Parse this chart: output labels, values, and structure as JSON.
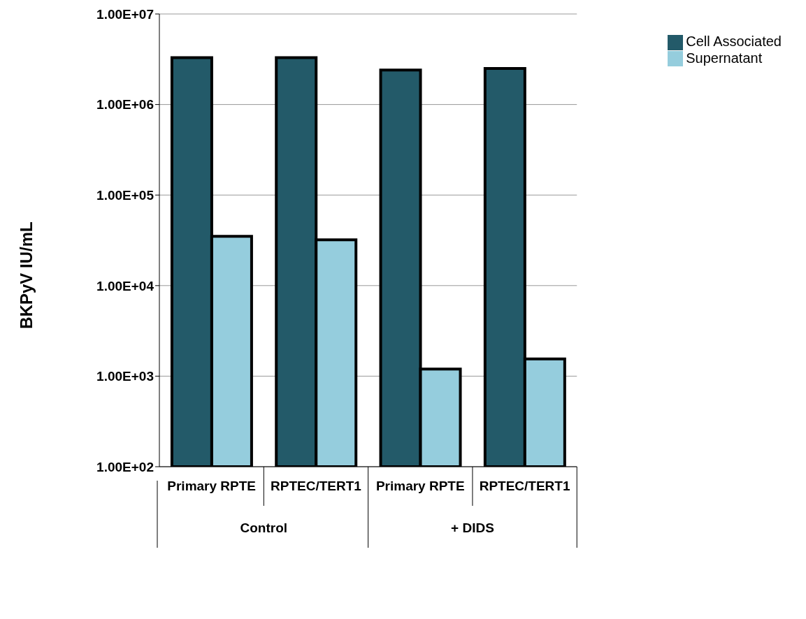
{
  "chart_data": {
    "type": "bar",
    "ylabel": "BKPyV IU/mL",
    "categories": [
      "Primary RPTE",
      "RPTEC/TERT1",
      "Primary RPTE",
      "RPTEC/TERT1"
    ],
    "annotations": [
      "Control",
      "+ DIDS"
    ],
    "series": [
      {
        "name": "Cell Associated",
        "color": "#235a69",
        "values": [
          3300000,
          3300000,
          2400000,
          2500000
        ]
      },
      {
        "name": "Supernatant",
        "color": "#95cddd",
        "values": [
          35000,
          32000,
          1200,
          1550
        ]
      }
    ],
    "log": true,
    "ylim": [
      100,
      10000000
    ],
    "yticks": [
      {
        "value": 100,
        "label": "1.00E+02"
      },
      {
        "value": 1000,
        "label": "1.00E+03"
      },
      {
        "value": 10000,
        "label": "1.00E+04"
      },
      {
        "value": 100000,
        "label": "1.00E+05"
      },
      {
        "value": 1000000,
        "label": "1.00E+06"
      },
      {
        "value": 10000000,
        "label": "1.00E+07"
      }
    ],
    "grid": "y",
    "legend": "top right"
  }
}
